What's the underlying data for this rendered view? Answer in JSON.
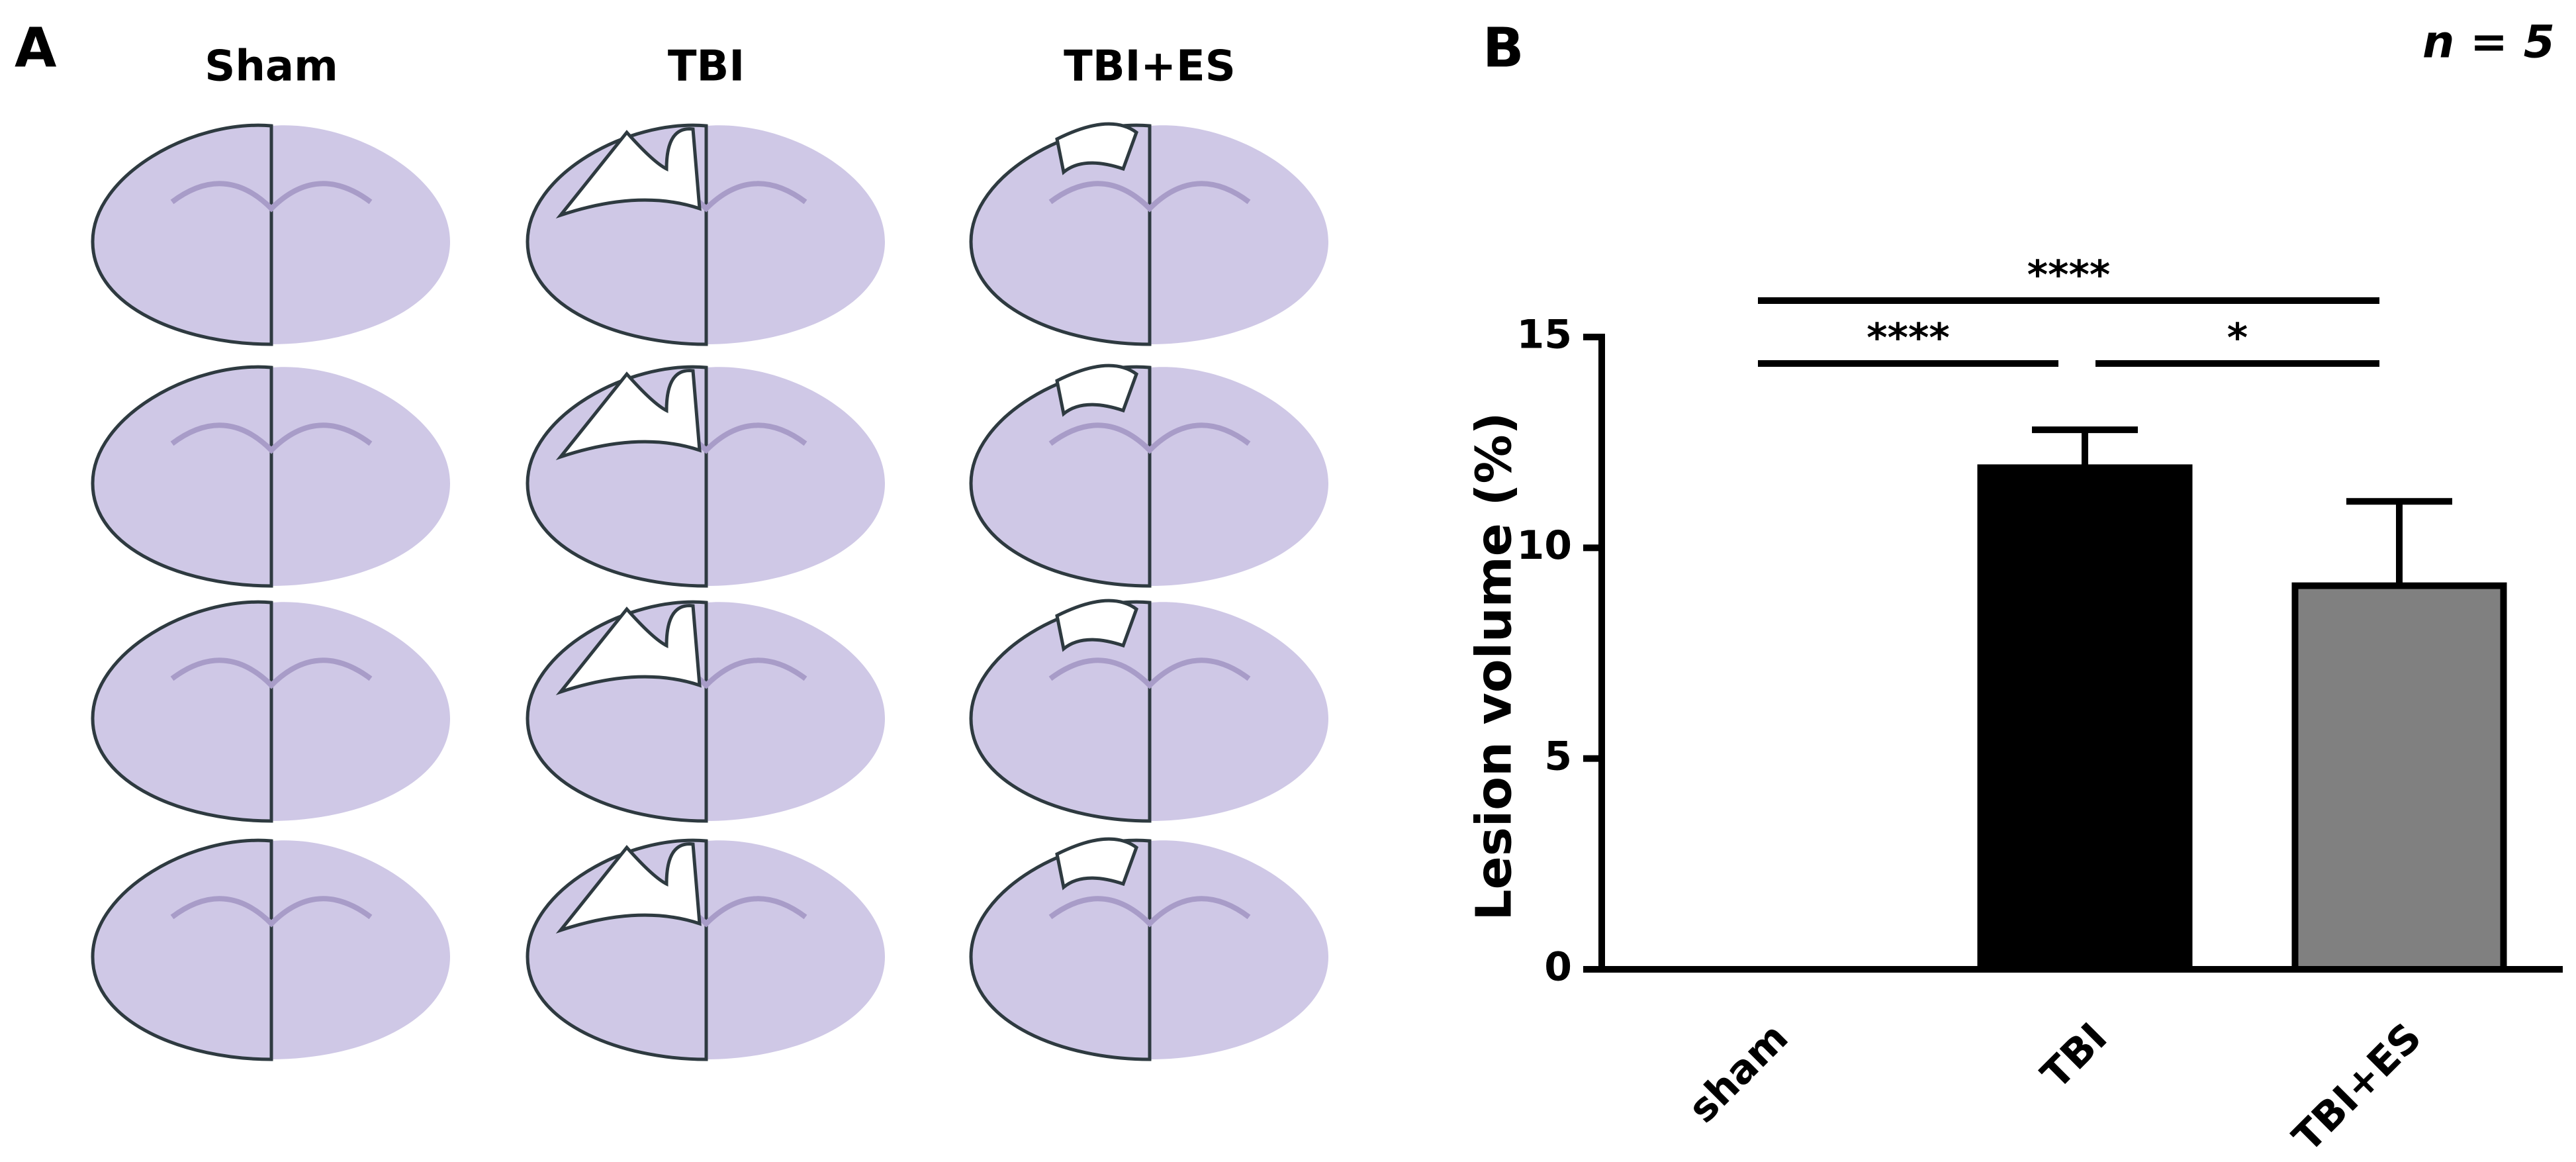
{
  "panel_a": {
    "label": "A",
    "columns": [
      "Sham",
      "TBI",
      "TBI+ES"
    ]
  },
  "chart_data": {
    "type": "bar",
    "panel_label": "B",
    "annotation": "n = 5",
    "y_label": "Lesion volume (%)",
    "categories": [
      "sham",
      "TBI",
      "TBI+ES"
    ],
    "values": [
      0,
      11.9,
      9.1
    ],
    "errors": [
      0,
      0.9,
      2.0
    ],
    "colors": [
      "#000000",
      "#000000",
      "#808080"
    ],
    "ylim": [
      0,
      15
    ],
    "yticks": [
      0,
      5,
      10,
      15
    ],
    "grid": false,
    "significance": [
      {
        "from": 0,
        "to": 2,
        "label": "****"
      },
      {
        "from": 0,
        "to": 1,
        "label": "****"
      },
      {
        "from": 1,
        "to": 2,
        "label": "*"
      }
    ]
  }
}
